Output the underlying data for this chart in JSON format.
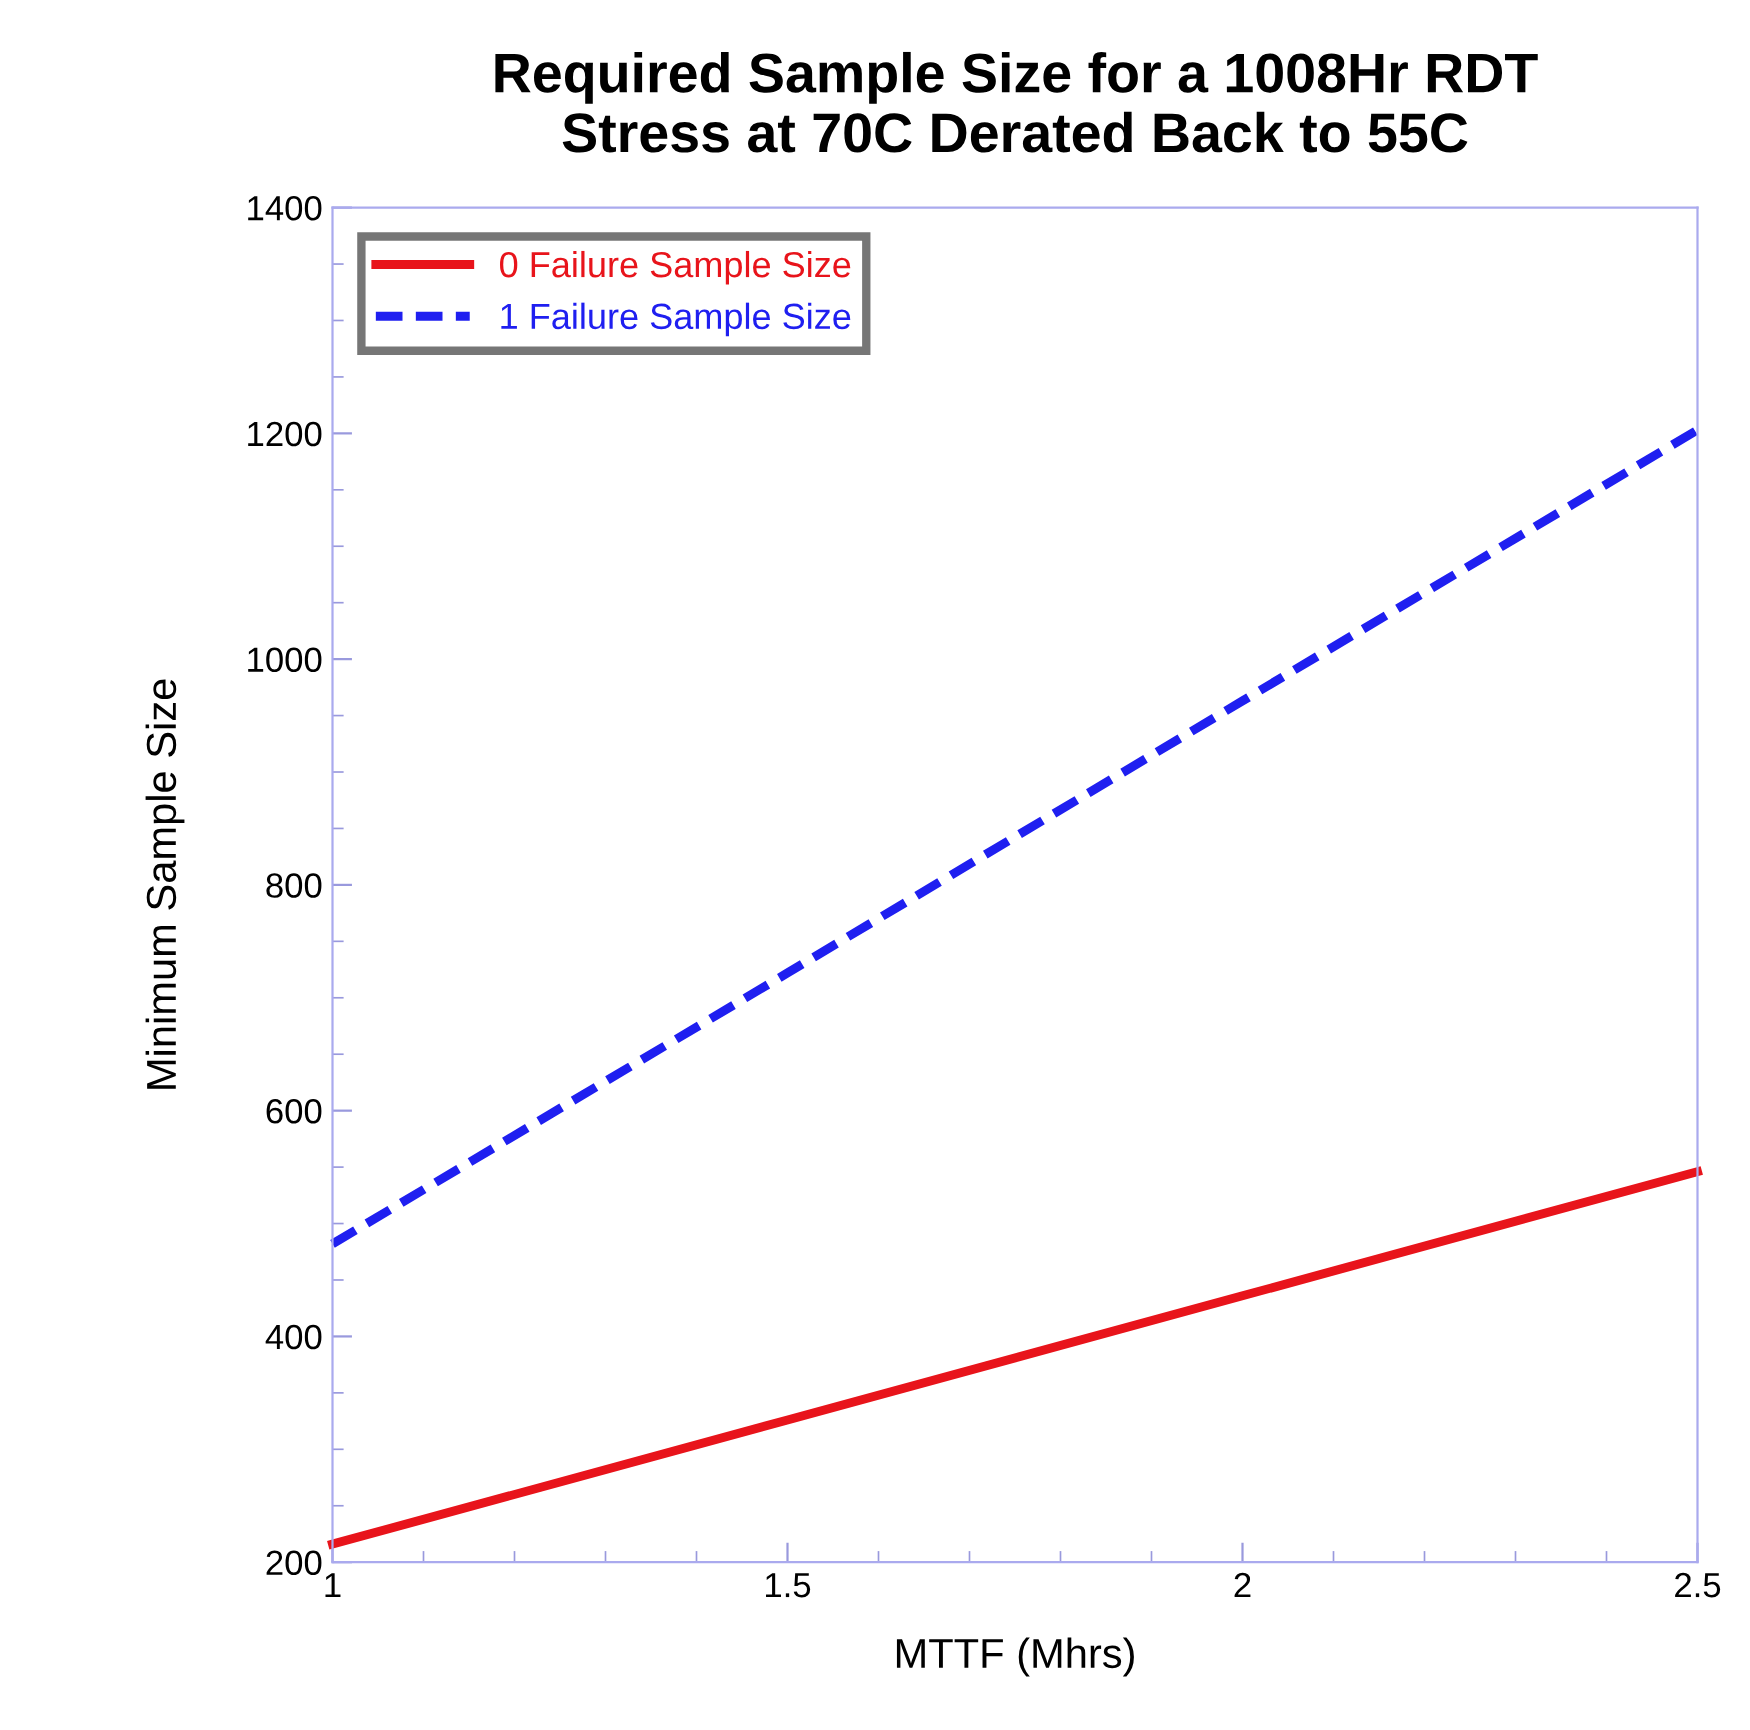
{
  "chart_data": {
    "type": "line",
    "title": "Required Sample Size for a 1008Hr RDT\nStress at 70C Derated Back to 55C",
    "xlabel": "MTTF (Mhrs)",
    "ylabel": "Minimum Sample Size",
    "series": [
      {
        "name": "0 Failure Sample Size",
        "color": "#e8141b",
        "line_style": "solid",
        "x": [
          1,
          1.5,
          2,
          2.5
        ],
        "values": [
          216,
          326,
          436,
          546
        ]
      },
      {
        "name": "1 Failure Sample Size",
        "color": "#1f1ff0",
        "line_style": "dashed",
        "x": [
          1,
          1.5,
          2,
          2.5
        ],
        "values": [
          482,
          722,
          963,
          1203
        ]
      }
    ],
    "xlim": [
      1,
      2.5
    ],
    "xticks": [
      1,
      1.5,
      2,
      2.5
    ],
    "ylim": [
      200,
      1400
    ],
    "yticks": [
      200,
      400,
      600,
      800,
      1000,
      1200,
      1400
    ],
    "grid": false,
    "legend": "top left",
    "marker": "none"
  }
}
